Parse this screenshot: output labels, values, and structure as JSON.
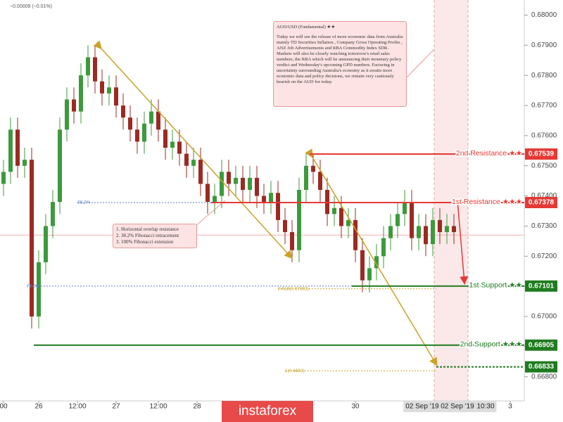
{
  "chart_data": {
    "type": "candlestick",
    "change": "−0.00009 (−0.01%)",
    "up_color": "#3c9a3c",
    "down_color": "#9b2a23",
    "xlim": [
      0,
      149
    ],
    "ylim": [
      0.6672,
      0.6805
    ],
    "x": [
      1,
      3,
      5,
      7,
      9,
      11,
      13,
      15,
      17,
      19,
      21,
      23,
      25,
      27,
      29,
      31,
      33,
      35,
      37,
      39,
      41,
      43,
      45,
      47,
      49,
      51,
      53,
      55,
      57,
      59,
      61,
      63,
      65,
      67,
      69,
      71,
      73,
      75,
      77,
      79,
      81,
      83,
      85,
      87,
      89,
      91,
      93,
      95,
      97,
      99,
      101,
      103,
      105,
      107,
      109,
      111,
      113,
      115,
      117,
      119,
      121,
      123,
      125,
      127,
      129
    ],
    "open": [
      0.6744,
      0.6748,
      0.6762,
      0.675,
      0.6752,
      0.67,
      0.6718,
      0.673,
      0.6738,
      0.6762,
      0.6772,
      0.6768,
      0.678,
      0.6786,
      0.6778,
      0.6774,
      0.6776,
      0.677,
      0.6766,
      0.6762,
      0.6758,
      0.6764,
      0.6768,
      0.6762,
      0.6756,
      0.6758,
      0.6754,
      0.675,
      0.6752,
      0.6744,
      0.6738,
      0.674,
      0.6748,
      0.6744,
      0.6746,
      0.6742,
      0.6746,
      0.674,
      0.6738,
      0.6741,
      0.6732,
      0.6728,
      0.6722,
      0.6742,
      0.675,
      0.6748,
      0.6742,
      0.6734,
      0.6736,
      0.673,
      0.6732,
      0.6722,
      0.6712,
      0.6716,
      0.672,
      0.6726,
      0.673,
      0.6734,
      0.6738,
      0.6726,
      0.673,
      0.6724,
      0.6732,
      0.6728,
      0.673
    ],
    "high": [
      0.6752,
      0.6766,
      0.6766,
      0.6756,
      0.6756,
      0.6722,
      0.6734,
      0.6742,
      0.6766,
      0.6776,
      0.6776,
      0.6784,
      0.679,
      0.679,
      0.6782,
      0.678,
      0.678,
      0.6774,
      0.677,
      0.6766,
      0.6768,
      0.6772,
      0.6772,
      0.6766,
      0.6762,
      0.6762,
      0.6758,
      0.6756,
      0.6756,
      0.6748,
      0.6744,
      0.6752,
      0.6752,
      0.675,
      0.675,
      0.675,
      0.675,
      0.6744,
      0.6745,
      0.6745,
      0.6736,
      0.6732,
      0.6746,
      0.6754,
      0.6754,
      0.6752,
      0.6746,
      0.674,
      0.674,
      0.6736,
      0.6736,
      0.6726,
      0.672,
      0.6724,
      0.673,
      0.6734,
      0.6738,
      0.6742,
      0.6742,
      0.6734,
      0.6734,
      0.6736,
      0.6736,
      0.6734,
      0.6734
    ],
    "low": [
      0.674,
      0.6744,
      0.6746,
      0.6746,
      0.6696,
      0.6696,
      0.6714,
      0.6726,
      0.6734,
      0.6758,
      0.6764,
      0.6764,
      0.6776,
      0.6774,
      0.677,
      0.677,
      0.6766,
      0.6762,
      0.6758,
      0.6754,
      0.6754,
      0.676,
      0.6758,
      0.6752,
      0.6752,
      0.675,
      0.6746,
      0.6746,
      0.674,
      0.6734,
      0.6734,
      0.6736,
      0.674,
      0.674,
      0.6738,
      0.6738,
      0.6736,
      0.6734,
      0.6734,
      0.6728,
      0.6724,
      0.6718,
      0.6718,
      0.6738,
      0.6744,
      0.6738,
      0.673,
      0.673,
      0.6726,
      0.6726,
      0.6718,
      0.6708,
      0.6708,
      0.6712,
      0.6716,
      0.6722,
      0.6726,
      0.673,
      0.6722,
      0.6722,
      0.672,
      0.672,
      0.6724,
      0.6724,
      0.6724
    ],
    "close": [
      0.6748,
      0.6762,
      0.675,
      0.6752,
      0.67,
      0.6718,
      0.673,
      0.6738,
      0.6762,
      0.6772,
      0.6768,
      0.678,
      0.6786,
      0.6778,
      0.6774,
      0.6776,
      0.677,
      0.6766,
      0.6762,
      0.6758,
      0.6764,
      0.6768,
      0.6762,
      0.6756,
      0.6758,
      0.6754,
      0.675,
      0.6752,
      0.6744,
      0.6738,
      0.674,
      0.6748,
      0.6744,
      0.6746,
      0.6742,
      0.6746,
      0.674,
      0.6738,
      0.6741,
      0.6732,
      0.6728,
      0.6722,
      0.6742,
      0.675,
      0.6748,
      0.6742,
      0.6734,
      0.6736,
      0.673,
      0.6732,
      0.6722,
      0.6712,
      0.6716,
      0.672,
      0.6726,
      0.673,
      0.6734,
      0.6738,
      0.6726,
      0.673,
      0.6724,
      0.6732,
      0.6728,
      0.673,
      0.6728
    ],
    "last_price": 0.6727,
    "yticks": [
      {
        "value": 0.668,
        "label": "0.66800"
      },
      {
        "value": 0.669,
        "label": "0.66900"
      },
      {
        "value": 0.67,
        "label": "0.67000"
      },
      {
        "value": 0.671,
        "label": "0.67100"
      },
      {
        "value": 0.672,
        "label": "0.67200"
      },
      {
        "value": 0.673,
        "label": "0.67300"
      },
      {
        "value": 0.674,
        "label": "0.67400"
      },
      {
        "value": 0.675,
        "label": "0.67500"
      },
      {
        "value": 0.676,
        "label": "0.67600"
      },
      {
        "value": 0.677,
        "label": "0.67700"
      },
      {
        "value": 0.678,
        "label": "0.67800"
      },
      {
        "value": 0.679,
        "label": "0.67900"
      },
      {
        "value": 0.68,
        "label": "0.68000"
      }
    ],
    "xticks": [
      {
        "value": 1,
        "label": "00"
      },
      {
        "value": 11,
        "label": "26"
      },
      {
        "value": 22,
        "label": "12:00"
      },
      {
        "value": 33,
        "label": "27"
      },
      {
        "value": 45,
        "label": "12:00"
      },
      {
        "value": 56,
        "label": "28"
      },
      {
        "value": 101,
        "label": "30"
      },
      {
        "value": 145,
        "label": "3"
      }
    ],
    "x_highlight_ticks": [
      {
        "value": 120,
        "label": "02 Sep '19"
      },
      {
        "value": 130,
        "label": "02 Sep '19"
      },
      {
        "value": 138,
        "label": "10:30"
      }
    ],
    "levels": [
      {
        "label": "2nd Resistance ★★",
        "value": 0.67539,
        "color": "#e53935"
      },
      {
        "label": "1st Resistance ★★★",
        "value": 0.67378,
        "color": "#e53935"
      },
      {
        "label": "1st Support ★★",
        "value": 0.67101,
        "color": "#1e7b1e"
      },
      {
        "label": "2nd Support ★★★",
        "value": 0.66905,
        "color": "#1e7b1e"
      },
      {
        "label": null,
        "value": 0.66833,
        "color": "#1e7b1e"
      }
    ],
    "fib_levels": [
      {
        "label": "38.2%",
        "price": 0.67378,
        "color": "#5c7cc8"
      },
      {
        "label": "78.6%",
        "price": 0.67101,
        "color": "#5c7cc8"
      },
      {
        "label": "0.618(0.67092)",
        "price": 0.67092,
        "color": "#c9a227"
      },
      {
        "label": "1(0.6682)",
        "price": 0.6682,
        "color": "#c9a227"
      }
    ],
    "note_title": "AUD/USD (Fundamental) ★★",
    "note_text": "Today we will see the release of more economic data from Australia mainly TD Securities Inflation , Company Gross Operating Profits , ANZ Job Advertisements and RBA Commodity Index SDR. Markets will also be closely watching tomorrow's retail sales numbers, the RBA which will be announcing their monetary policy verdict and Wednesday's upcoming GPD numbers. Factoring in uncertainty surrounding Australia's economy as it awaits more economic data and policy decisions, we remain very cautiously bearish on the AUD for today.",
    "reasons": [
      "1. Horizontal overlap resistance",
      "2. 38.2% Fibonacci retracement",
      "3. 100% Fibonacci extension"
    ],
    "watermark": "instaforex"
  }
}
